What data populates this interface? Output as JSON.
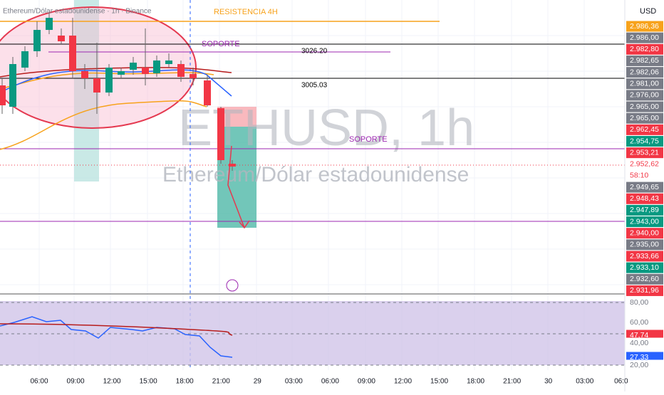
{
  "header": {
    "title": "Ethereum/Dólar estadounidense · 1h · Binance",
    "currency": "USD"
  },
  "watermark": {
    "symbol": "ETHUSD, 1h",
    "name": "Ethereum/Dólar estadounidense"
  },
  "annotations": {
    "resistance": "RESISTENCIA 4H",
    "support_top": "SOPORTE",
    "level_high": "3026.20",
    "level_mid": "3005.03",
    "support_mid": "SOPORTE"
  },
  "price_labels": [
    {
      "text": "2.986,36",
      "color": "#f7a21b"
    },
    {
      "text": "2.986,00",
      "color": "#787b86"
    },
    {
      "text": "2.982,80",
      "color": "#f23645"
    },
    {
      "text": "2.982,65",
      "color": "#787b86"
    },
    {
      "text": "2.982,06",
      "color": "#787b86"
    },
    {
      "text": "2.981,00",
      "color": "#787b86"
    },
    {
      "text": "2.976,00",
      "color": "#787b86"
    },
    {
      "text": "2.965,00",
      "color": "#787b86"
    },
    {
      "text": "2.965,00",
      "color": "#787b86"
    },
    {
      "text": "2.962,45",
      "color": "#f23645"
    },
    {
      "text": "2.954,75",
      "color": "#089981"
    },
    {
      "text": "2.953,21",
      "color": "#f23645"
    },
    {
      "text": "2.952,62",
      "color": "#ffffff"
    },
    {
      "text": "58:10",
      "color": "#ffffff"
    },
    {
      "text": "2.949,65",
      "color": "#787b86"
    },
    {
      "text": "2.948,43",
      "color": "#f23645"
    },
    {
      "text": "2.947,89",
      "color": "#089981"
    },
    {
      "text": "2.943,00",
      "color": "#089981"
    },
    {
      "text": "2.940,00",
      "color": "#f23645"
    },
    {
      "text": "2.935,00",
      "color": "#787b86"
    },
    {
      "text": "2.933,66",
      "color": "#f23645"
    },
    {
      "text": "2.933,10",
      "color": "#089981"
    },
    {
      "text": "2.932,60",
      "color": "#787b86"
    },
    {
      "text": "2.931,96",
      "color": "#f23645"
    }
  ],
  "rsi_labels": [
    {
      "text": "80,00",
      "color": "#ffffff"
    },
    {
      "text": "60,00",
      "color": "#ffffff"
    },
    {
      "text": "47,74",
      "color": "#f23645"
    },
    {
      "text": "40,00",
      "color": "#ffffff"
    },
    {
      "text": "27,33",
      "color": "#2962ff"
    },
    {
      "text": "20,00",
      "color": "#ffffff"
    }
  ],
  "time_labels": [
    "06:00",
    "09:00",
    "12:00",
    "15:00",
    "18:00",
    "21:00",
    "29",
    "03:00",
    "06:00",
    "09:00",
    "12:00",
    "15:00",
    "18:00",
    "21:00",
    "30",
    "03:00",
    "06:0"
  ]
}
